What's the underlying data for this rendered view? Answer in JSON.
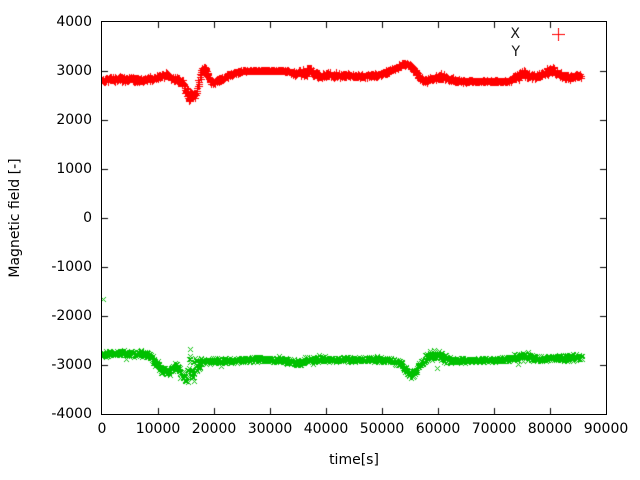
{
  "chart_data": {
    "type": "scatter",
    "title": "",
    "xlabel": "time[s]",
    "ylabel": "Magnetic field [-]",
    "xlim": [
      0,
      90000
    ],
    "ylim": [
      -4000,
      4000
    ],
    "grid": false,
    "background": "#ffffff",
    "border_color": "#000000",
    "x_ticks": [
      {
        "value": 0,
        "label": "0"
      },
      {
        "value": 10000,
        "label": "10000"
      },
      {
        "value": 20000,
        "label": "20000"
      },
      {
        "value": 30000,
        "label": "30000"
      },
      {
        "value": 40000,
        "label": "40000"
      },
      {
        "value": 50000,
        "label": "50000"
      },
      {
        "value": 60000,
        "label": "60000"
      },
      {
        "value": 70000,
        "label": "70000"
      },
      {
        "value": 80000,
        "label": "80000"
      },
      {
        "value": 90000,
        "label": "90000"
      }
    ],
    "y_ticks": [
      {
        "value": -4000,
        "label": "-4000"
      },
      {
        "value": -3000,
        "label": "-3000"
      },
      {
        "value": -2000,
        "label": "-2000"
      },
      {
        "value": -1000,
        "label": "-1000"
      },
      {
        "value": 0,
        "label": "0"
      },
      {
        "value": 1000,
        "label": "1000"
      },
      {
        "value": 2000,
        "label": "2000"
      },
      {
        "value": 3000,
        "label": "3000"
      },
      {
        "value": 4000,
        "label": "4000"
      }
    ],
    "legend": {
      "position": "top-right",
      "entries": [
        {
          "label": "X",
          "marker": "plus",
          "color": "#ff0000",
          "marker_visible": true
        },
        {
          "label": "Y",
          "marker": "cross",
          "color": "#00c000",
          "marker_visible": false
        }
      ]
    },
    "series": [
      {
        "name": "X",
        "marker": "plus",
        "color": "#ff0000",
        "seed": 42,
        "sample_step": 50,
        "t_start": 0,
        "t_end": 85500,
        "keypoints": [
          [
            0,
            2820,
            60
          ],
          [
            3000,
            2840,
            70
          ],
          [
            5000,
            2830,
            60
          ],
          [
            7000,
            2820,
            55
          ],
          [
            9000,
            2840,
            55
          ],
          [
            10500,
            2890,
            60
          ],
          [
            11500,
            2930,
            55
          ],
          [
            12500,
            2850,
            60
          ],
          [
            13500,
            2810,
            60
          ],
          [
            14500,
            2740,
            90
          ],
          [
            15300,
            2520,
            140
          ],
          [
            16300,
            2470,
            130
          ],
          [
            17000,
            2600,
            150
          ],
          [
            17800,
            3000,
            80
          ],
          [
            18500,
            3050,
            60
          ],
          [
            19300,
            2820,
            70
          ],
          [
            19800,
            2760,
            60
          ],
          [
            21000,
            2820,
            55
          ],
          [
            23000,
            2930,
            45
          ],
          [
            24500,
            2985,
            30
          ],
          [
            26000,
            3005,
            18
          ],
          [
            29000,
            3010,
            15
          ],
          [
            32000,
            3010,
            18
          ],
          [
            33500,
            2990,
            40
          ],
          [
            34500,
            2950,
            70
          ],
          [
            36000,
            2960,
            100
          ],
          [
            37200,
            3010,
            110
          ],
          [
            38000,
            2940,
            80
          ],
          [
            39000,
            2900,
            65
          ],
          [
            40500,
            2930,
            60
          ],
          [
            42000,
            2900,
            55
          ],
          [
            43500,
            2920,
            55
          ],
          [
            45000,
            2900,
            50
          ],
          [
            47000,
            2890,
            45
          ],
          [
            49000,
            2910,
            45
          ],
          [
            51000,
            2980,
            50
          ],
          [
            52500,
            3060,
            55
          ],
          [
            54000,
            3140,
            55
          ],
          [
            55000,
            3120,
            60
          ],
          [
            56000,
            2990,
            70
          ],
          [
            57000,
            2820,
            60
          ],
          [
            58000,
            2800,
            55
          ],
          [
            59500,
            2860,
            70
          ],
          [
            60500,
            2880,
            90
          ],
          [
            61500,
            2850,
            75
          ],
          [
            63000,
            2810,
            55
          ],
          [
            64500,
            2795,
            35
          ],
          [
            67000,
            2790,
            28
          ],
          [
            70000,
            2790,
            25
          ],
          [
            73000,
            2795,
            30
          ],
          [
            74200,
            2900,
            80
          ],
          [
            75200,
            2960,
            90
          ],
          [
            76000,
            2920,
            80
          ],
          [
            77300,
            2890,
            65
          ],
          [
            78300,
            2920,
            70
          ],
          [
            79500,
            2980,
            85
          ],
          [
            80500,
            3010,
            90
          ],
          [
            81500,
            2940,
            80
          ],
          [
            82500,
            2890,
            70
          ],
          [
            83500,
            2880,
            65
          ],
          [
            84500,
            2890,
            70
          ],
          [
            85500,
            2890,
            60
          ]
        ]
      },
      {
        "name": "Y",
        "marker": "cross",
        "color": "#00c000",
        "seed": 1337,
        "sample_step": 50,
        "t_start": 0,
        "t_end": 85700,
        "keypoints": [
          [
            0,
            -2770,
            75
          ],
          [
            2500,
            -2760,
            75
          ],
          [
            5000,
            -2770,
            75
          ],
          [
            7000,
            -2780,
            80
          ],
          [
            8500,
            -2820,
            85
          ],
          [
            9800,
            -2980,
            95
          ],
          [
            11000,
            -3120,
            95
          ],
          [
            12200,
            -3150,
            90
          ],
          [
            13200,
            -3000,
            85
          ],
          [
            14200,
            -3180,
            95
          ],
          [
            15000,
            -3280,
            90
          ],
          [
            15600,
            -2950,
            420
          ],
          [
            16400,
            -2950,
            400
          ],
          [
            17200,
            -3000,
            140
          ],
          [
            18000,
            -2920,
            90
          ],
          [
            19500,
            -2930,
            80
          ],
          [
            21000,
            -2910,
            70
          ],
          [
            23000,
            -2900,
            65
          ],
          [
            26000,
            -2880,
            60
          ],
          [
            29000,
            -2880,
            60
          ],
          [
            32000,
            -2890,
            60
          ],
          [
            34000,
            -2930,
            85
          ],
          [
            35300,
            -2960,
            110
          ],
          [
            36500,
            -2900,
            75
          ],
          [
            38000,
            -2890,
            65
          ],
          [
            40000,
            -2880,
            65
          ],
          [
            42000,
            -2890,
            60
          ],
          [
            44000,
            -2880,
            60
          ],
          [
            46000,
            -2880,
            60
          ],
          [
            48000,
            -2880,
            55
          ],
          [
            50000,
            -2890,
            60
          ],
          [
            52000,
            -2910,
            65
          ],
          [
            53500,
            -2980,
            80
          ],
          [
            54800,
            -3180,
            95
          ],
          [
            55800,
            -3160,
            90
          ],
          [
            56800,
            -2980,
            90
          ],
          [
            58000,
            -2830,
            110
          ],
          [
            59500,
            -2790,
            130
          ],
          [
            60800,
            -2830,
            130
          ],
          [
            62000,
            -2900,
            75
          ],
          [
            64000,
            -2900,
            55
          ],
          [
            67000,
            -2900,
            50
          ],
          [
            70000,
            -2895,
            50
          ],
          [
            72500,
            -2880,
            60
          ],
          [
            74000,
            -2830,
            110
          ],
          [
            75500,
            -2800,
            120
          ],
          [
            76800,
            -2870,
            80
          ],
          [
            78500,
            -2870,
            65
          ],
          [
            80000,
            -2860,
            70
          ],
          [
            81500,
            -2850,
            75
          ],
          [
            83000,
            -2850,
            70
          ],
          [
            84500,
            -2840,
            75
          ],
          [
            85700,
            -2830,
            70
          ]
        ]
      }
    ],
    "outliers": [
      {
        "series": "Y",
        "t": 250,
        "value": -1650
      },
      {
        "series": "Y",
        "t": 59800,
        "value": -3070
      }
    ]
  }
}
